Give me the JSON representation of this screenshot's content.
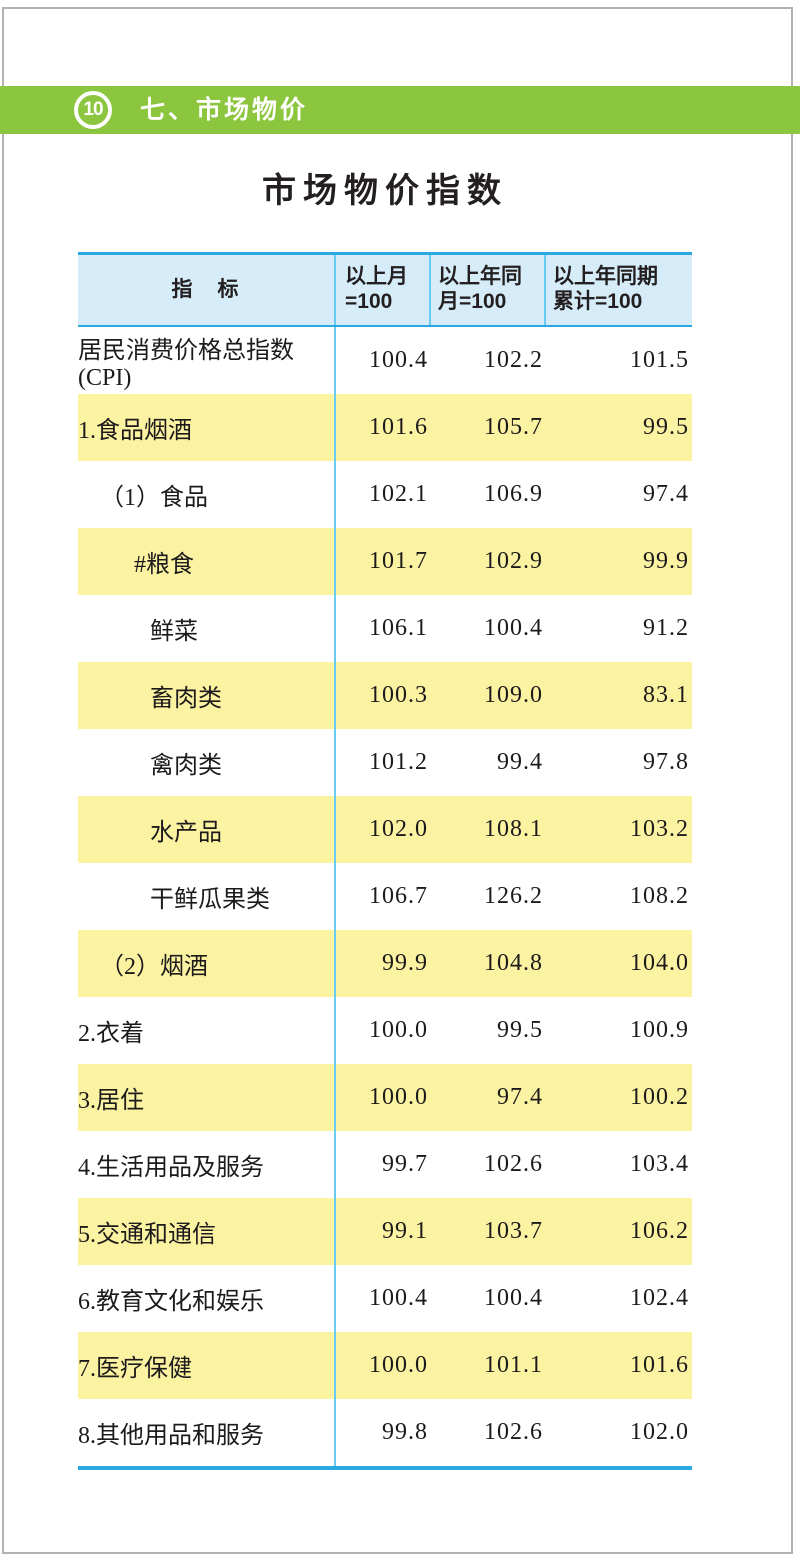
{
  "header_bar": {
    "badge": "10",
    "section": "七、市场物价"
  },
  "page_title": "市场物价指数",
  "table": {
    "columns": [
      {
        "label": "指　标"
      },
      {
        "label": "以上月\n=100"
      },
      {
        "label": "以上年同\n月=100"
      },
      {
        "label": "以上年同期\n累计=100"
      }
    ],
    "rows": [
      {
        "label": "居民消费价格总指数(CPI)",
        "indent": 0,
        "highlight": false,
        "values": [
          "100.4",
          "102.2",
          "101.5"
        ]
      },
      {
        "label": "1.食品烟酒",
        "indent": 0,
        "highlight": true,
        "values": [
          "101.6",
          "105.7",
          "99.5"
        ]
      },
      {
        "label": "（1）食品",
        "indent": 1,
        "highlight": false,
        "values": [
          "102.1",
          "106.9",
          "97.4"
        ]
      },
      {
        "label": "#粮食",
        "indent": 2,
        "highlight": true,
        "values": [
          "101.7",
          "102.9",
          "99.9"
        ]
      },
      {
        "label": "鲜菜",
        "indent": 3,
        "highlight": false,
        "values": [
          "106.1",
          "100.4",
          "91.2"
        ]
      },
      {
        "label": "畜肉类",
        "indent": 3,
        "highlight": true,
        "values": [
          "100.3",
          "109.0",
          "83.1"
        ]
      },
      {
        "label": "禽肉类",
        "indent": 3,
        "highlight": false,
        "values": [
          "101.2",
          "99.4",
          "97.8"
        ]
      },
      {
        "label": "水产品",
        "indent": 3,
        "highlight": true,
        "values": [
          "102.0",
          "108.1",
          "103.2"
        ]
      },
      {
        "label": "干鲜瓜果类",
        "indent": 3,
        "highlight": false,
        "values": [
          "106.7",
          "126.2",
          "108.2"
        ]
      },
      {
        "label": "（2）烟酒",
        "indent": 1,
        "highlight": true,
        "values": [
          "99.9",
          "104.8",
          "104.0"
        ]
      },
      {
        "label": "2.衣着",
        "indent": 0,
        "highlight": false,
        "values": [
          "100.0",
          "99.5",
          "100.9"
        ]
      },
      {
        "label": "3.居住",
        "indent": 0,
        "highlight": true,
        "values": [
          "100.0",
          "97.4",
          "100.2"
        ]
      },
      {
        "label": "4.生活用品及服务",
        "indent": 0,
        "highlight": false,
        "values": [
          "99.7",
          "102.6",
          "103.4"
        ]
      },
      {
        "label": "5.交通和通信",
        "indent": 0,
        "highlight": true,
        "values": [
          "99.1",
          "103.7",
          "106.2"
        ]
      },
      {
        "label": "6.教育文化和娱乐",
        "indent": 0,
        "highlight": false,
        "values": [
          "100.4",
          "100.4",
          "102.4"
        ]
      },
      {
        "label": "7.医疗保健",
        "indent": 0,
        "highlight": true,
        "values": [
          "100.0",
          "101.1",
          "101.6"
        ]
      },
      {
        "label": "8.其他用品和服务",
        "indent": 0,
        "highlight": false,
        "values": [
          "99.8",
          "102.6",
          "102.0"
        ]
      }
    ]
  },
  "colors": {
    "section_green": "#8cc63e",
    "row_highlight_yellow": "#fbf2a2",
    "header_bg_blue": "#d6ecf8",
    "border_strong_blue": "#2aa9e0",
    "border_light_cyan": "#67cbf2",
    "text": "#231f20",
    "page_frame_gray": "#b3b1b2"
  }
}
